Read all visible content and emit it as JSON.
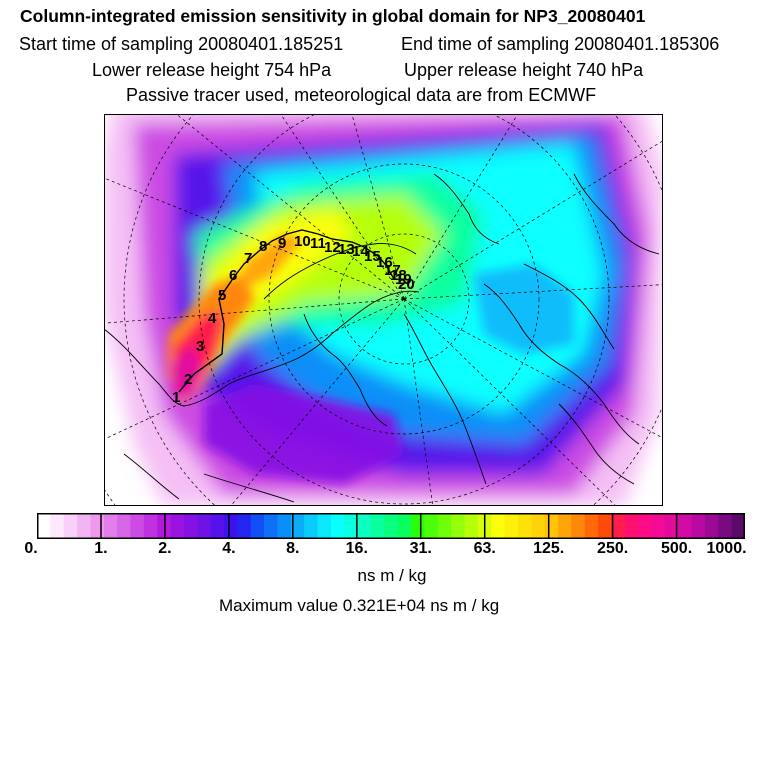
{
  "header": {
    "title": "Column-integrated emission sensitivity in global domain for NP3_20080401",
    "start_time": "Start time of sampling 20080401.185251",
    "end_time": "End time of sampling 20080401.185306",
    "lower_height": "Lower release height  754 hPa",
    "upper_height": "Upper release height  740 hPa",
    "tracer_info": "Passive tracer used, meteorological data are from ECMWF"
  },
  "track_labels": [
    "1",
    "2",
    "3",
    "4",
    "5",
    "6",
    "7",
    "8",
    "9",
    "10",
    "11",
    "12",
    "13",
    "14",
    "15",
    "16",
    "17",
    "18",
    "19",
    "20"
  ],
  "colorbar": {
    "tick_labels": [
      "0.",
      "1.",
      "2.",
      "4.",
      "8.",
      "16.",
      "31.",
      "63.",
      "125.",
      "250.",
      "500.",
      "1000."
    ],
    "unit": "ns m / kg",
    "colors": [
      "#ffffff",
      "#fde8fd",
      "#f9d0f9",
      "#f3b4f3",
      "#ee99ee",
      "#e27ee9",
      "#d766e6",
      "#cc4ce3",
      "#bf31e1",
      "#b31ade",
      "#9c12e0",
      "#8512e3",
      "#6e12e6",
      "#5612ea",
      "#3e12ee",
      "#2626f2",
      "#1050f6",
      "#0d70f7",
      "#0b8ef8",
      "#0aacfa",
      "#0acbfb",
      "#0ae8fc",
      "#0affff",
      "#0affe0",
      "#0affc0",
      "#0aff9f",
      "#0aff7f",
      "#0aff5e",
      "#2aff0a",
      "#4dff0a",
      "#70ff0a",
      "#93ff0a",
      "#b5ff0a",
      "#d8ff0a",
      "#fbff0a",
      "#fff00a",
      "#ffe10a",
      "#ffd20a",
      "#ffc30a",
      "#ffa50a",
      "#ff870a",
      "#ff690a",
      "#ff4b0a",
      "#ff1e4b",
      "#ff0f6e",
      "#ff0a87",
      "#f30a95",
      "#e30a9e",
      "#d00aa3",
      "#b80aa0",
      "#9a0a94",
      "#7a0a80",
      "#5a0a68"
    ]
  },
  "maximum": "Maximum value  0.321E+04 ns m / kg"
}
